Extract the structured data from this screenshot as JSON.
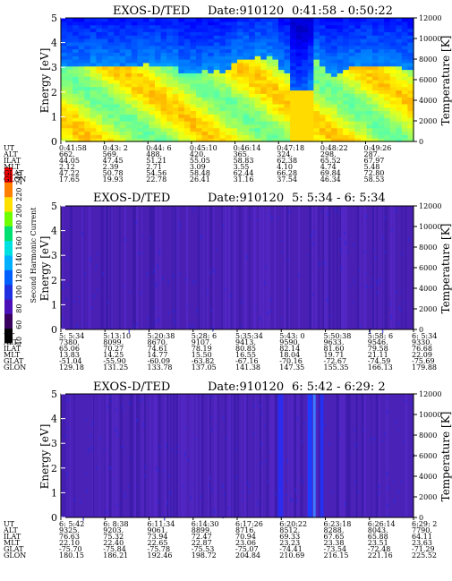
{
  "chart_data": [
    {
      "type": "heatmap",
      "title": "EXOS-D/TED",
      "date_label": "Date:910120",
      "time_range": "0:41:58 - 0:50:22",
      "ylabel": "Energy [eV]",
      "y2label": "Temperature [K]",
      "ylim": [
        0,
        5
      ],
      "y_ticks": [
        "0",
        "1",
        "2",
        "3",
        "4",
        "5"
      ],
      "y2lim": [
        0,
        12000
      ],
      "y2_ticks": [
        "0",
        "2000",
        "4000",
        "6000",
        "8000",
        "10000",
        "12000"
      ],
      "colormap": "jet",
      "x": {
        "UT": [
          "0:41:58",
          "0:43: 2",
          "0:44: 6",
          "0:45:10",
          "0:46:14",
          "0:47:18",
          "0:48:22",
          "0:49:26"
        ],
        "ALT": [
          "662.",
          "569.",
          "488.",
          "420.",
          "365.",
          "324.",
          "298.",
          "287."
        ],
        "ILAT": [
          "44.05",
          "47.45",
          "51.21",
          "55.05",
          "58.83",
          "62.38",
          "65.52",
          "67.97"
        ],
        "MLT": [
          "2.12",
          "2.39",
          "2.71",
          "3.09",
          "3.55",
          "4.10",
          "4.74",
          "5.48"
        ],
        "GLAT": [
          "47.22",
          "50.78",
          "54.56",
          "58.48",
          "62.44",
          "66.28",
          "69.84",
          "72.80"
        ],
        "GLON": [
          "17.65",
          "19.93",
          "22.78",
          "26.41",
          "31.16",
          "37.54",
          "46.34",
          "58.53"
        ]
      },
      "energy_profile_by_column": [
        3.0,
        3.0,
        3.0,
        3.0,
        3.0,
        3.1,
        3.1,
        3.1,
        3.0,
        3.0,
        3.0,
        3.0,
        3.0,
        3.1,
        3.2,
        3.1,
        3.1,
        3.1,
        3.1,
        3.1,
        2.8,
        2.8,
        2.8,
        2.8,
        2.9,
        2.8,
        2.9,
        2.8,
        2.9,
        3.2,
        3.4,
        3.4,
        3.3,
        3.5,
        3.4,
        3.5,
        3.4,
        2.9,
        2.8,
        1.6,
        1.4,
        1.6,
        2.0,
        3.3,
        3.0,
        2.8,
        2.7,
        2.8,
        2.9,
        3.0,
        3.0,
        3.1,
        3.1,
        3.0,
        3.0,
        3.0,
        3.0,
        3.0,
        2.9,
        2.9
      ]
    },
    {
      "type": "heatmap",
      "title": "EXOS-D/TED",
      "date_label": "Date:910120",
      "time_range": "5: 5:34 - 6: 5:34",
      "ylabel": "Energy [eV]",
      "y2label": "Temperature [K]",
      "ylim": [
        0,
        5
      ],
      "y_ticks": [
        "0",
        "1",
        "2",
        "3",
        "4",
        "5"
      ],
      "y2lim": [
        0,
        12000
      ],
      "y2_ticks": [
        "0",
        "2000",
        "4000",
        "6000",
        "8000",
        "10000",
        "12000"
      ],
      "colormap": "jet",
      "x": {
        "UT": [
          "5: 5:34",
          "5:13:10",
          "5:20:38",
          "5:28: 6",
          "5:35:34",
          "5:43: 0",
          "5:50:38",
          "5:58: 6",
          "6: 5:34"
        ],
        "ALT": [
          "7380.",
          "8099.",
          "8670.",
          "9107.",
          "9413.",
          "9590.",
          "9633.",
          "9546.",
          "9330."
        ],
        "ILAT": [
          "65.06",
          "70.27",
          "74.61",
          "78.19",
          "80.85",
          "82.14",
          "81.60",
          "79.58",
          "76.68"
        ],
        "MLT": [
          "13.83",
          "14.25",
          "14.77",
          "15.50",
          "16.55",
          "18.04",
          "19.71",
          "21.11",
          "22.09"
        ],
        "GLAT": [
          "-51.04",
          "-55.90",
          "-60.09",
          "-63.82",
          "-67.16",
          "-70.16",
          "-72.67",
          "-74.59",
          "-75.69"
        ],
        "GLON": [
          "129.18",
          "131.25",
          "133.78",
          "137.05",
          "141.38",
          "147.35",
          "155.35",
          "166.13",
          "179.88"
        ]
      }
    },
    {
      "type": "heatmap",
      "title": "EXOS-D/TED",
      "date_label": "Date:910120",
      "time_range": "6: 5:42 - 6:29: 2",
      "ylabel": "Energy [eV]",
      "y2label": "Temperature [K]",
      "ylim": [
        0,
        5
      ],
      "y_ticks": [
        "0",
        "1",
        "2",
        "3",
        "4",
        "5"
      ],
      "y2lim": [
        0,
        12000
      ],
      "y2_ticks": [
        "0",
        "2000",
        "4000",
        "6000",
        "8000",
        "10000",
        "12000"
      ],
      "colormap": "jet",
      "x": {
        "UT": [
          "6: 5:42",
          "6: 8:38",
          "6:11:34",
          "6:14:30",
          "6:17:26",
          "6:20:22",
          "6:23:18",
          "6:26:14",
          "6:29: 2"
        ],
        "ALT": [
          "9325.",
          "9203.",
          "9061.",
          "8899.",
          "8716.",
          "8512.",
          "8288.",
          "8043.",
          "7790."
        ],
        "ILAT": [
          "76.63",
          "75.32",
          "73.94",
          "72.47",
          "70.94",
          "69.33",
          "67.65",
          "65.88",
          "64.11"
        ],
        "MLT": [
          "22.10",
          "22.40",
          "22.65",
          "22.87",
          "23.06",
          "23.23",
          "23.38",
          "23.51",
          "23.63"
        ],
        "GLAT": [
          "-75.70",
          "-75.84",
          "-75.78",
          "-75.53",
          "-75.07",
          "-74.41",
          "-73.54",
          "-72.48",
          "-71.29"
        ],
        "GLON": [
          "180.15",
          "186.21",
          "192.46",
          "198.72",
          "204.84",
          "210.69",
          "216.15",
          "221.16",
          "225.52"
        ]
      }
    }
  ],
  "colorbar": {
    "label": "Second Harmonic Current",
    "ticks": [
      "40",
      "60",
      "80",
      "100",
      "120",
      "140",
      "160",
      "180",
      "200",
      "220",
      "240"
    ],
    "colors": [
      "#000000",
      "#3a0060",
      "#4b10b8",
      "#2030e0",
      "#0060ff",
      "#00b0ff",
      "#00e0e0",
      "#00e070",
      "#70ff00",
      "#ffe000",
      "#ff8000",
      "#ff0000"
    ]
  },
  "row_labels": [
    "UT",
    "ALT",
    "ILAT",
    "MLT",
    "GLAT",
    "GLON"
  ]
}
